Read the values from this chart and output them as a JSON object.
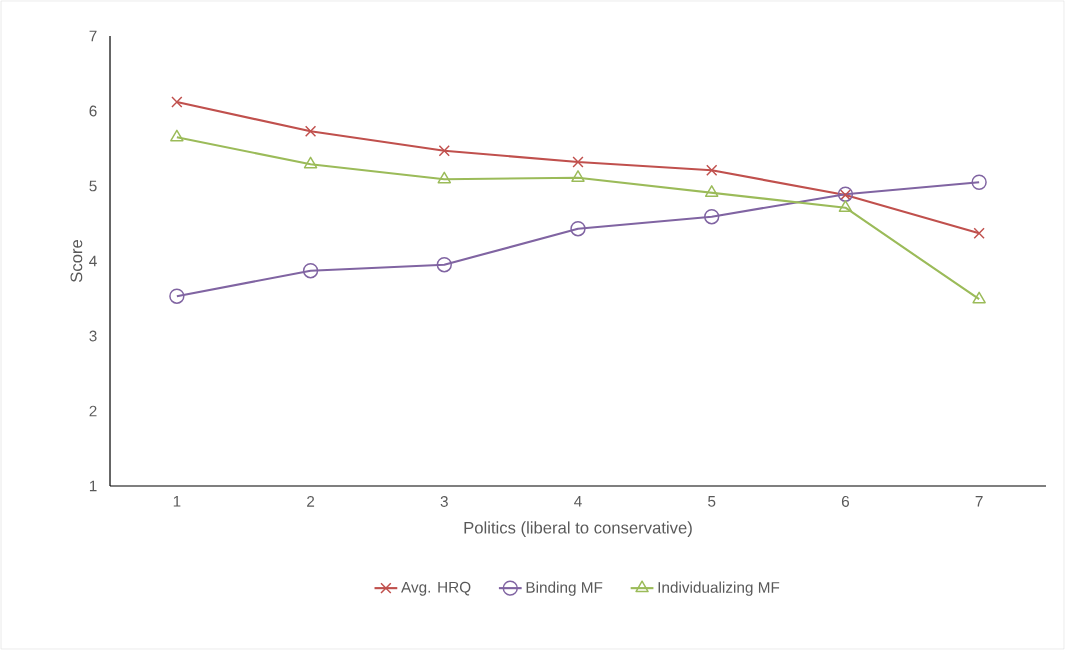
{
  "chart_data": {
    "type": "line",
    "xlabel": "Politics (liberal to conservative)",
    "ylabel": "Score",
    "categories": [
      "1",
      "2",
      "3",
      "4",
      "5",
      "6",
      "7"
    ],
    "ylim": [
      1,
      7
    ],
    "yticks": [
      1,
      2,
      3,
      4,
      5,
      6,
      7
    ],
    "legend": "bottom",
    "line_style": "solid",
    "series": [
      {
        "name": "Avg. HRQ",
        "color": "#c0504d",
        "marker": "cross",
        "values": [
          6.12,
          5.73,
          5.47,
          5.32,
          5.21,
          4.88,
          4.37
        ]
      },
      {
        "name": "Binding MF",
        "color": "#8064a2",
        "marker": "circle",
        "values": [
          3.53,
          3.87,
          3.95,
          4.43,
          4.59,
          4.89,
          5.05
        ]
      },
      {
        "name": "Individualizing MF",
        "color": "#9bbb59",
        "marker": "triangle",
        "values": [
          5.65,
          5.29,
          5.09,
          5.11,
          4.91,
          4.71,
          3.49
        ]
      }
    ]
  }
}
